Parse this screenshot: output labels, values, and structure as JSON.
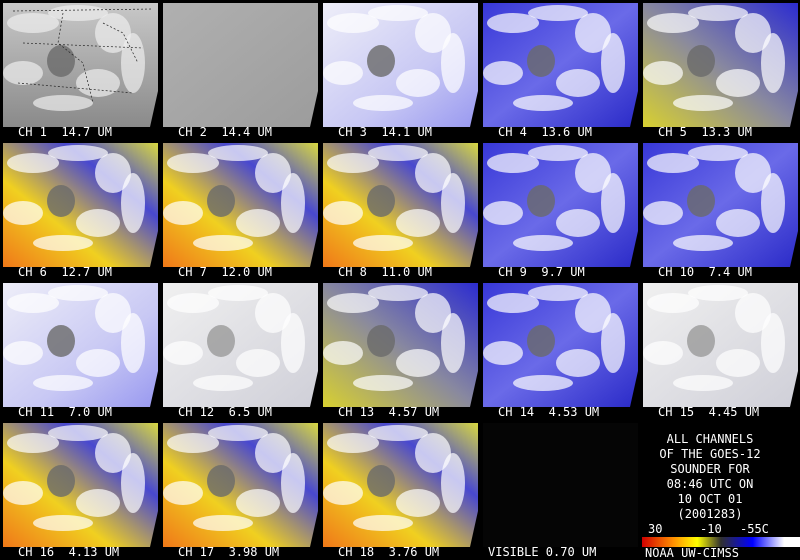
{
  "panels": [
    {
      "label": "CH 1  14.7 UM"
    },
    {
      "label": "CH 2  14.4 UM"
    },
    {
      "label": "CH 3  14.1 UM"
    },
    {
      "label": "CH 4  13.6 UM"
    },
    {
      "label": "CH 5  13.3 UM"
    },
    {
      "label": "CH 6  12.7 UM"
    },
    {
      "label": "CH 7  12.0 UM"
    },
    {
      "label": "CH 8  11.0 UM"
    },
    {
      "label": "CH 9  9.7 UM"
    },
    {
      "label": "CH 10  7.4 UM"
    },
    {
      "label": "CH 11  7.0 UM"
    },
    {
      "label": "CH 12  6.5 UM"
    },
    {
      "label": "CH 13  4.57 UM"
    },
    {
      "label": "CH 14  4.53 UM"
    },
    {
      "label": "CH 15  4.45 UM"
    },
    {
      "label": "CH 16  4.13 UM"
    },
    {
      "label": "CH 17  3.98 UM"
    },
    {
      "label": "CH 18  3.76 UM"
    },
    {
      "label": "VISIBLE 0.70 UM"
    }
  ],
  "info": {
    "lines": [
      "ALL CHANNELS",
      "OF THE GOES-12",
      "SOUNDER FOR",
      "08:46 UTC ON",
      "10 OCT 01",
      "(2001283)"
    ],
    "colorbar_labels": [
      "30",
      "-10",
      "-55C"
    ],
    "footer": "NOAA UW-CIMSS"
  }
}
